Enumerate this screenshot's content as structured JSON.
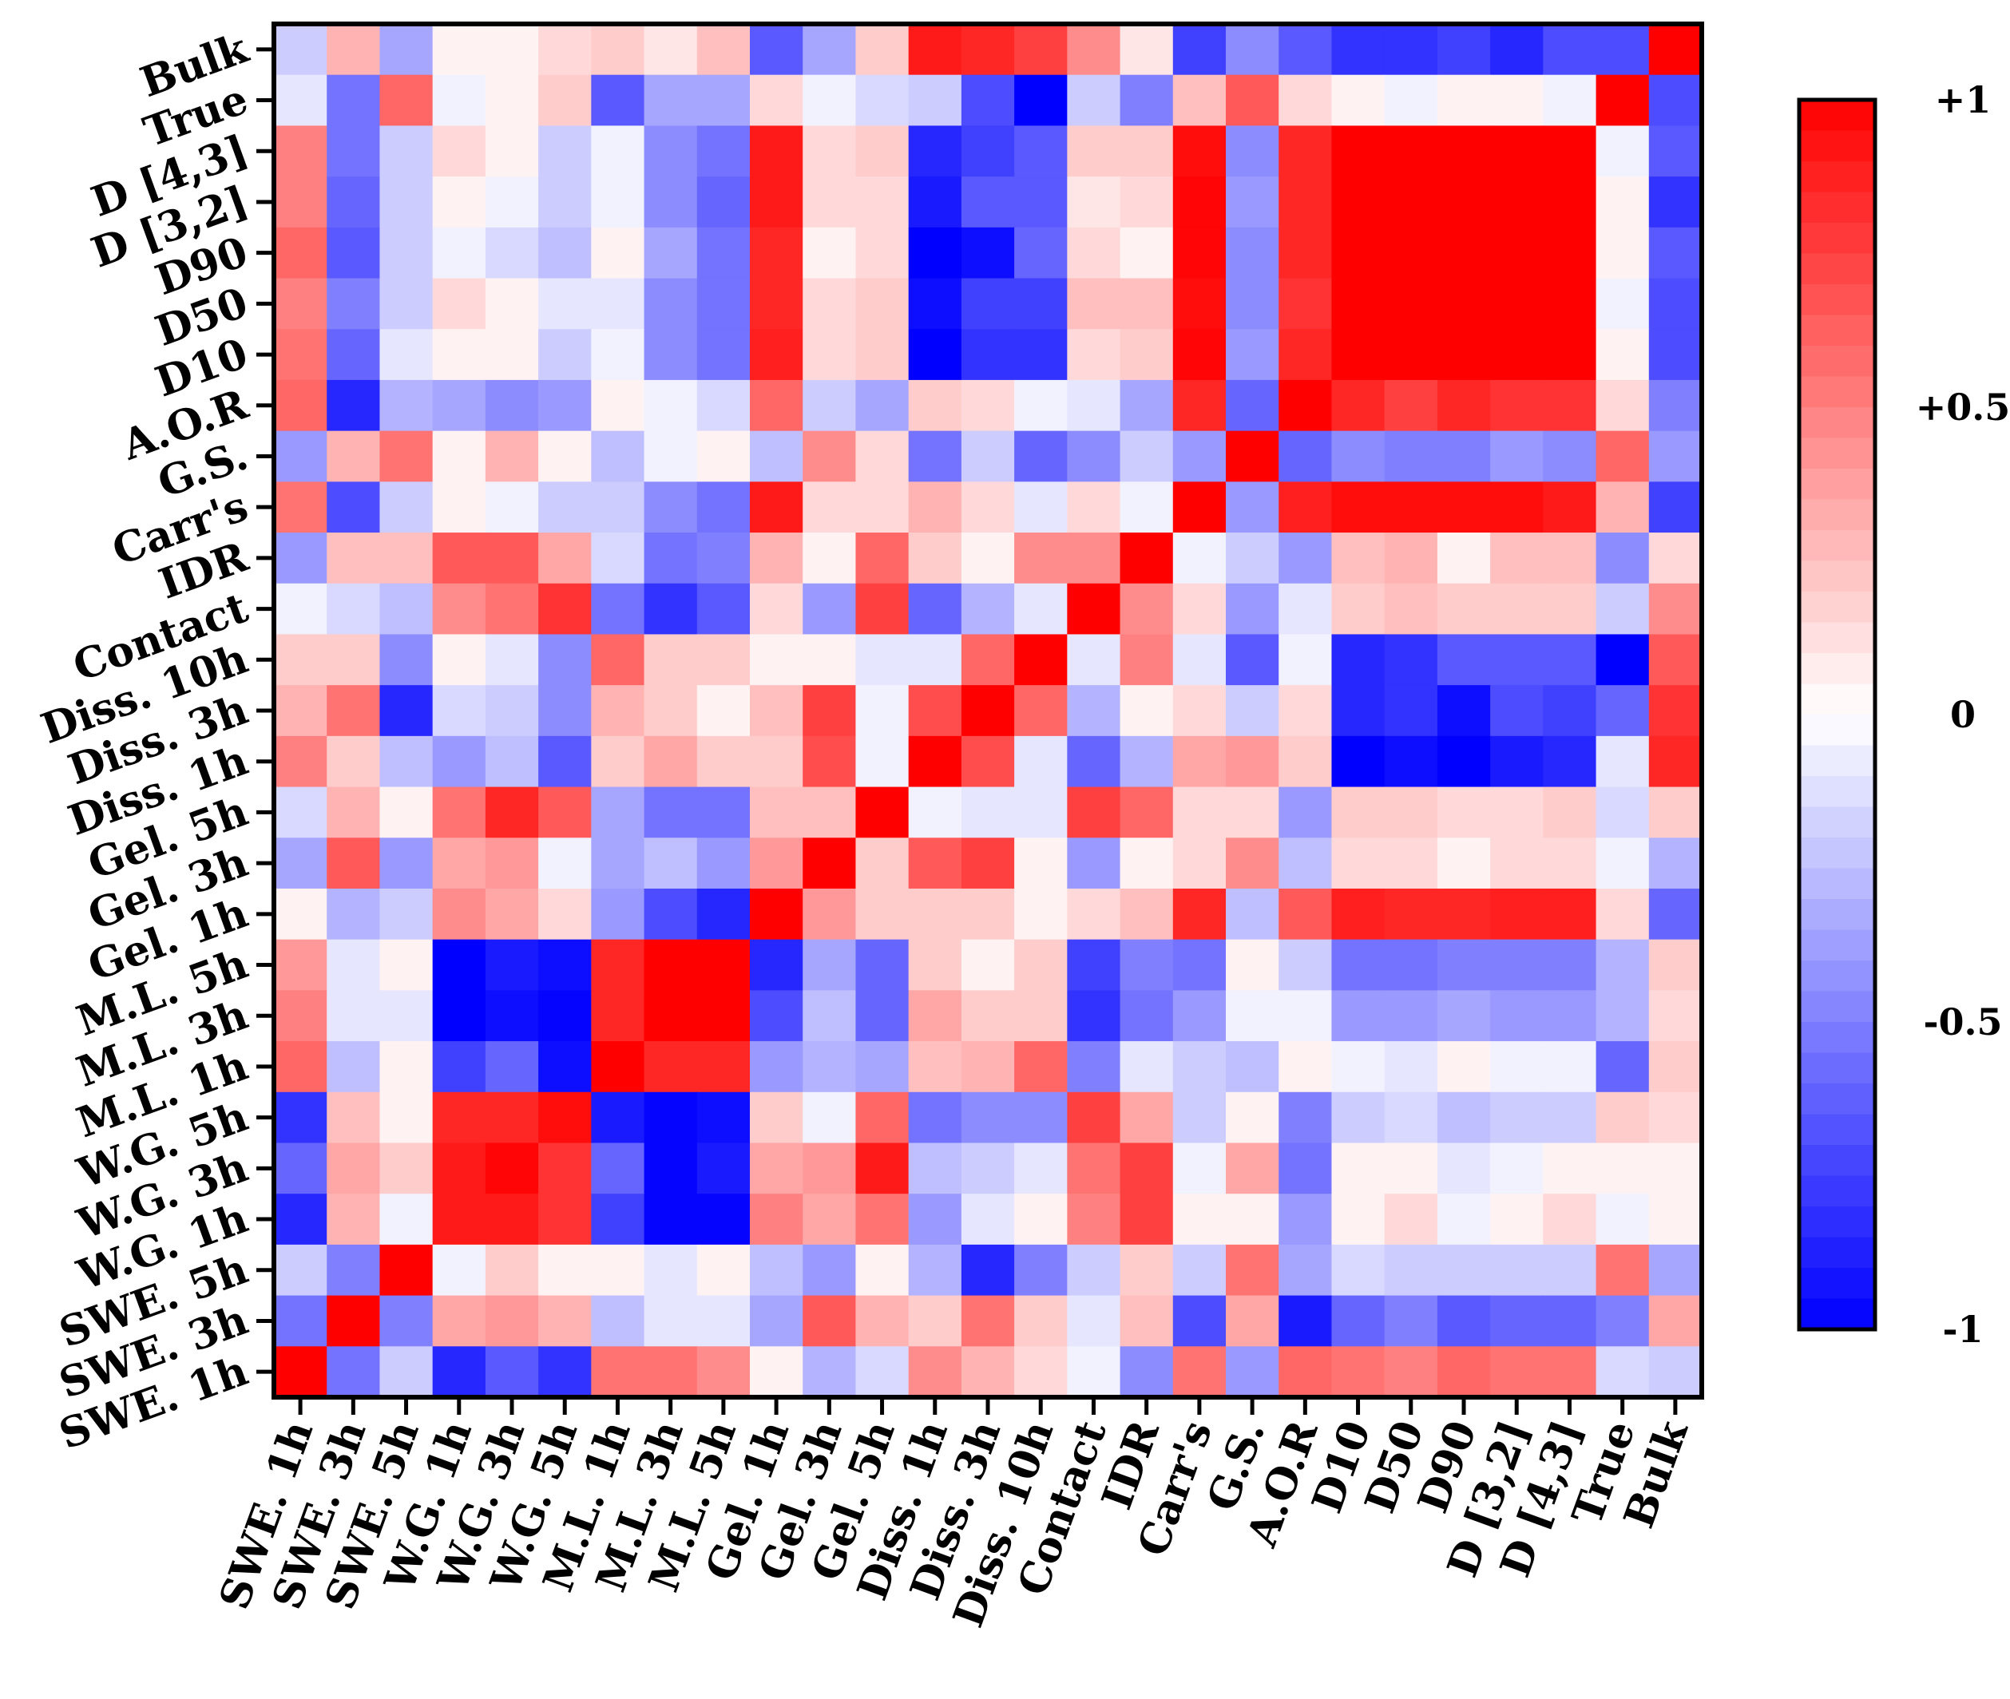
{
  "chart_data": {
    "type": "heatmap",
    "title": "",
    "xlabel": "",
    "ylabel": "",
    "x_labels": [
      "SWE. 1h",
      "SWE. 3h",
      "SWE. 5h",
      "W.G. 1h",
      "W.G. 3h",
      "W.G. 5h",
      "M.L. 1h",
      "M.L. 3h",
      "M.L. 5h",
      "Gel. 1h",
      "Gel. 3h",
      "Gel. 5h",
      "Diss. 1h",
      "Diss. 3h",
      "Diss. 10h",
      "Contact",
      "IDR",
      "Carr's",
      "G.S.",
      "A.O.R",
      "D10",
      "D50",
      "D90",
      "D [3,2]",
      "D [4,3]",
      "True",
      "Bulk"
    ],
    "y_labels": [
      "Bulk",
      "True",
      "D [4,3]",
      "D [3,2]",
      "D90",
      "D50",
      "D10",
      "A.O.R",
      "G.S.",
      "Carr's",
      "IDR",
      "Contact",
      "Diss. 10h",
      "Diss. 3h",
      "Diss. 1h",
      "Gel. 5h",
      "Gel. 3h",
      "Gel. 1h",
      "M.L. 5h",
      "M.L. 3h",
      "M.L. 1h",
      "W.G. 5h",
      "W.G. 3h",
      "W.G. 1h",
      "SWE. 5h",
      "SWE. 3h",
      "SWE. 1h"
    ],
    "values": [
      [
        -0.2,
        0.3,
        -0.35,
        0.05,
        0.05,
        0.15,
        0.2,
        0.1,
        0.25,
        -0.65,
        -0.35,
        0.2,
        0.9,
        0.85,
        0.75,
        0.45,
        0.1,
        -0.75,
        -0.45,
        -0.65,
        -0.8,
        -0.8,
        -0.75,
        -0.85,
        -0.7,
        -0.7,
        1.0
      ],
      [
        -0.1,
        -0.55,
        0.6,
        -0.05,
        0.05,
        0.2,
        -0.65,
        -0.35,
        -0.35,
        0.15,
        -0.05,
        -0.15,
        -0.2,
        -0.7,
        -1.0,
        -0.2,
        -0.5,
        0.25,
        0.65,
        0.15,
        0.05,
        -0.05,
        0.05,
        0.05,
        -0.05,
        1.0,
        -0.7
      ],
      [
        0.5,
        -0.55,
        -0.2,
        0.15,
        0.05,
        -0.2,
        -0.05,
        -0.45,
        -0.55,
        0.9,
        0.15,
        0.2,
        -0.85,
        -0.75,
        -0.65,
        0.2,
        0.2,
        0.95,
        -0.45,
        0.85,
        1.0,
        1.0,
        1.0,
        1.0,
        1.0,
        -0.05,
        -0.65
      ],
      [
        0.5,
        -0.6,
        -0.2,
        0.05,
        -0.05,
        -0.2,
        -0.05,
        -0.45,
        -0.6,
        0.9,
        0.15,
        0.15,
        -0.9,
        -0.65,
        -0.65,
        0.1,
        0.15,
        0.98,
        -0.4,
        0.85,
        1.0,
        1.0,
        1.0,
        1.0,
        1.0,
        0.05,
        -0.8
      ],
      [
        0.6,
        -0.65,
        -0.2,
        -0.05,
        -0.15,
        -0.25,
        0.05,
        -0.35,
        -0.55,
        0.85,
        0.05,
        0.15,
        -1.0,
        -0.95,
        -0.6,
        0.15,
        0.05,
        0.98,
        -0.45,
        0.85,
        1.0,
        1.0,
        1.0,
        1.0,
        1.0,
        0.05,
        -0.65
      ],
      [
        0.5,
        -0.5,
        -0.2,
        0.15,
        0.05,
        -0.1,
        -0.1,
        -0.45,
        -0.55,
        0.85,
        0.15,
        0.2,
        -0.95,
        -0.75,
        -0.75,
        0.25,
        0.25,
        0.95,
        -0.45,
        0.8,
        1.0,
        1.0,
        1.0,
        1.0,
        1.0,
        -0.05,
        -0.7
      ],
      [
        0.55,
        -0.6,
        -0.1,
        0.05,
        0.05,
        -0.2,
        -0.05,
        -0.45,
        -0.55,
        0.88,
        0.15,
        0.2,
        -1.0,
        -0.8,
        -0.8,
        0.15,
        0.2,
        0.98,
        -0.4,
        0.85,
        1.0,
        1.0,
        1.0,
        1.0,
        1.0,
        0.05,
        -0.7
      ],
      [
        0.6,
        -0.85,
        -0.3,
        -0.35,
        -0.45,
        -0.4,
        0.05,
        -0.05,
        -0.15,
        0.6,
        -0.2,
        -0.35,
        0.2,
        0.15,
        -0.05,
        -0.1,
        -0.35,
        0.85,
        -0.6,
        1.0,
        0.85,
        0.75,
        0.85,
        0.8,
        0.8,
        0.15,
        -0.5
      ],
      [
        -0.4,
        0.3,
        0.55,
        0.05,
        0.3,
        0.05,
        -0.25,
        -0.05,
        0.05,
        -0.25,
        0.45,
        0.15,
        -0.55,
        -0.2,
        -0.6,
        -0.45,
        -0.2,
        -0.4,
        1.0,
        -0.6,
        -0.45,
        -0.5,
        -0.5,
        -0.4,
        -0.45,
        0.6,
        -0.4
      ],
      [
        0.55,
        -0.7,
        -0.2,
        0.05,
        -0.05,
        -0.2,
        -0.2,
        -0.45,
        -0.55,
        0.9,
        0.15,
        0.15,
        0.3,
        0.15,
        -0.1,
        0.15,
        -0.05,
        1.0,
        -0.4,
        0.88,
        0.95,
        0.95,
        0.95,
        0.95,
        0.9,
        0.3,
        -0.75
      ],
      [
        -0.4,
        0.25,
        0.25,
        0.65,
        0.65,
        0.35,
        -0.15,
        -0.55,
        -0.5,
        0.3,
        0.05,
        0.6,
        0.2,
        0.05,
        0.45,
        0.45,
        1.0,
        -0.05,
        -0.2,
        -0.4,
        0.25,
        0.3,
        0.05,
        0.25,
        0.25,
        -0.45,
        0.15
      ],
      [
        -0.05,
        -0.15,
        -0.25,
        0.45,
        0.55,
        0.8,
        -0.55,
        -0.8,
        -0.65,
        0.15,
        -0.4,
        0.75,
        -0.6,
        -0.3,
        -0.1,
        1.0,
        0.45,
        0.15,
        -0.4,
        -0.1,
        0.2,
        0.25,
        0.2,
        0.2,
        0.2,
        -0.2,
        0.45
      ],
      [
        0.2,
        0.2,
        -0.45,
        0.05,
        -0.1,
        -0.45,
        0.6,
        0.2,
        0.2,
        0.05,
        0.05,
        -0.1,
        -0.1,
        0.6,
        1.0,
        -0.1,
        0.5,
        -0.1,
        -0.65,
        -0.05,
        -0.85,
        -0.8,
        -0.65,
        -0.65,
        -0.65,
        -1.0,
        0.65
      ],
      [
        0.3,
        0.55,
        -0.85,
        -0.15,
        -0.2,
        -0.45,
        0.3,
        0.2,
        0.05,
        0.25,
        0.75,
        -0.05,
        0.7,
        1.0,
        0.6,
        -0.3,
        0.05,
        0.15,
        -0.2,
        0.15,
        -0.85,
        -0.8,
        -0.95,
        -0.7,
        -0.75,
        -0.6,
        0.8
      ],
      [
        0.5,
        0.2,
        -0.25,
        -0.4,
        -0.25,
        -0.65,
        0.2,
        0.35,
        0.2,
        0.2,
        0.7,
        -0.05,
        1.0,
        0.7,
        -0.1,
        -0.6,
        -0.3,
        0.35,
        0.4,
        0.2,
        -1.0,
        -0.95,
        -1.0,
        -0.9,
        -0.85,
        -0.1,
        0.85
      ],
      [
        -0.15,
        0.3,
        0.05,
        0.55,
        0.85,
        0.65,
        -0.35,
        -0.55,
        -0.55,
        0.25,
        0.25,
        1.0,
        -0.05,
        -0.1,
        -0.1,
        0.75,
        0.6,
        0.15,
        0.15,
        -0.4,
        0.2,
        0.2,
        0.15,
        0.15,
        0.2,
        -0.15,
        0.2
      ],
      [
        -0.35,
        0.65,
        -0.4,
        0.35,
        0.4,
        -0.05,
        -0.35,
        -0.25,
        -0.4,
        0.4,
        1.0,
        0.2,
        0.65,
        0.75,
        0.05,
        -0.4,
        0.05,
        0.15,
        0.45,
        -0.25,
        0.15,
        0.15,
        0.05,
        0.15,
        0.15,
        -0.05,
        -0.3
      ],
      [
        0.05,
        -0.3,
        -0.2,
        0.45,
        0.35,
        0.15,
        -0.4,
        -0.7,
        -0.85,
        1.0,
        0.4,
        0.2,
        0.2,
        0.2,
        0.05,
        0.15,
        0.25,
        0.85,
        -0.25,
        0.65,
        0.88,
        0.85,
        0.85,
        0.88,
        0.88,
        0.15,
        -0.6
      ],
      [
        0.4,
        -0.1,
        0.05,
        -1.0,
        -0.9,
        -0.95,
        0.85,
        1.0,
        1.0,
        -0.85,
        -0.35,
        -0.6,
        0.2,
        0.05,
        0.2,
        -0.75,
        -0.5,
        -0.55,
        0.05,
        -0.2,
        -0.55,
        -0.55,
        -0.5,
        -0.5,
        -0.5,
        -0.3,
        0.2
      ],
      [
        0.5,
        -0.1,
        -0.1,
        -1.0,
        -0.95,
        -0.98,
        0.85,
        1.0,
        1.0,
        -0.7,
        -0.25,
        -0.6,
        0.35,
        0.2,
        0.2,
        -0.8,
        -0.55,
        -0.4,
        -0.05,
        -0.05,
        -0.4,
        -0.4,
        -0.35,
        -0.4,
        -0.4,
        -0.3,
        0.15
      ],
      [
        0.6,
        -0.25,
        0.05,
        -0.75,
        -0.6,
        -0.95,
        1.0,
        0.85,
        0.85,
        -0.4,
        -0.3,
        -0.35,
        0.25,
        0.3,
        0.6,
        -0.5,
        -0.1,
        -0.2,
        -0.25,
        0.05,
        -0.05,
        -0.1,
        0.05,
        -0.05,
        -0.05,
        -0.6,
        0.2
      ],
      [
        -0.8,
        0.25,
        0.05,
        0.85,
        0.85,
        0.95,
        -0.9,
        -0.98,
        -0.95,
        0.2,
        -0.05,
        0.6,
        -0.55,
        -0.45,
        -0.45,
        0.75,
        0.35,
        -0.2,
        0.05,
        -0.5,
        -0.2,
        -0.15,
        -0.25,
        -0.2,
        -0.2,
        0.2,
        0.15
      ],
      [
        -0.6,
        0.35,
        0.2,
        0.9,
        0.98,
        0.8,
        -0.6,
        -0.98,
        -0.9,
        0.35,
        0.4,
        0.9,
        -0.25,
        -0.2,
        -0.1,
        0.55,
        0.75,
        -0.05,
        0.35,
        -0.55,
        0.05,
        0.05,
        -0.1,
        -0.05,
        0.05,
        0.05,
        0.05
      ],
      [
        -0.85,
        0.3,
        -0.05,
        0.9,
        0.9,
        0.8,
        -0.75,
        -0.98,
        -0.98,
        0.5,
        0.35,
        0.55,
        -0.4,
        -0.1,
        0.05,
        0.5,
        0.75,
        0.05,
        0.05,
        -0.4,
        0.05,
        0.15,
        -0.05,
        0.05,
        0.15,
        -0.05,
        0.05
      ],
      [
        -0.2,
        -0.5,
        1.0,
        -0.05,
        0.2,
        0.05,
        0.05,
        -0.1,
        0.05,
        -0.25,
        -0.4,
        0.05,
        -0.3,
        -0.85,
        -0.5,
        -0.2,
        0.2,
        -0.2,
        0.55,
        -0.35,
        -0.15,
        -0.2,
        -0.2,
        -0.2,
        -0.2,
        0.55,
        -0.35
      ],
      [
        -0.55,
        1.0,
        -0.5,
        0.35,
        0.4,
        0.3,
        -0.25,
        -0.1,
        -0.1,
        -0.35,
        0.65,
        0.3,
        0.2,
        0.55,
        0.2,
        -0.1,
        0.25,
        -0.7,
        0.35,
        -0.9,
        -0.6,
        -0.5,
        -0.65,
        -0.6,
        -0.6,
        -0.5,
        0.35
      ],
      [
        1.0,
        -0.55,
        -0.2,
        -0.85,
        -0.65,
        -0.8,
        0.55,
        0.55,
        0.45,
        0.05,
        -0.3,
        -0.15,
        0.45,
        0.3,
        0.15,
        -0.05,
        -0.45,
        0.55,
        -0.4,
        0.6,
        0.55,
        0.5,
        0.6,
        0.55,
        0.55,
        -0.15,
        -0.2
      ]
    ],
    "vmin": -1,
    "vmax": 1,
    "colormap": [
      "#0000ff",
      "#ffffff",
      "#ff0000"
    ],
    "colorbar": {
      "ticks": [
        1,
        0.5,
        0,
        -0.5,
        -1
      ],
      "tick_labels": [
        "+1",
        "+0.5",
        "0",
        "-0.5",
        "-1"
      ],
      "levels": 40
    },
    "legend_position": "right"
  }
}
